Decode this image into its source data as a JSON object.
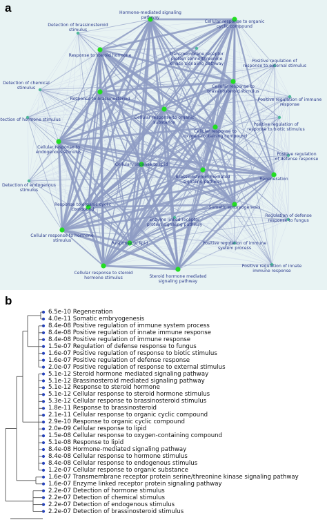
{
  "panel_a": {
    "letter": "a",
    "nodes": [
      {
        "id": "hormone_signal",
        "lines": [
          "Hormone-mediated signaling",
          "pathway"
        ],
        "accent": true
      },
      {
        "id": "detect_brass",
        "lines": [
          "Detection of brassinosteroid",
          "stimulus"
        ],
        "accent": false
      },
      {
        "id": "cell_org_cyclic",
        "lines": [
          "Cellular response to organic",
          "cyclic compound"
        ],
        "accent": true
      },
      {
        "id": "resp_steroid",
        "lines": [
          "Response to steroid hormone"
        ],
        "accent": true
      },
      {
        "id": "transmembrane",
        "lines": [
          "Transmembrane receptor",
          "protein serine/threonine",
          "kinase signaling pathway"
        ],
        "accent": false
      },
      {
        "id": "pos_ext",
        "lines": [
          "Positive regulation of",
          "response to external stimulus"
        ],
        "accent": false
      },
      {
        "id": "detect_chem",
        "lines": [
          "Detection of chemical",
          "stimulus"
        ],
        "accent": false
      },
      {
        "id": "cell_brass",
        "lines": [
          "Cellular response to",
          "brassinosteroid stimulus"
        ],
        "accent": true
      },
      {
        "id": "resp_brass",
        "lines": [
          "Response to brassinosteroid"
        ],
        "accent": true
      },
      {
        "id": "pos_immune",
        "lines": [
          "Positive regulation of immune",
          "response"
        ],
        "accent": false
      },
      {
        "id": "detect_hormone",
        "lines": [
          "Detection of hormone stimulus"
        ],
        "accent": false
      },
      {
        "id": "cell_org_sub",
        "lines": [
          "Cellular response to organic",
          "substance"
        ],
        "accent": true
      },
      {
        "id": "pos_biotic",
        "lines": [
          "Positive regulation of",
          "response to biotic stimulus"
        ],
        "accent": false
      },
      {
        "id": "cell_oxy",
        "lines": [
          "Cellular response to",
          "oxygen-containing compound"
        ],
        "accent": true
      },
      {
        "id": "cell_endo",
        "lines": [
          "Cellular response to",
          "endogenous stimulus"
        ],
        "accent": true
      },
      {
        "id": "pos_defense",
        "lines": [
          "Positive regulation",
          "of defense response"
        ],
        "accent": false
      },
      {
        "id": "cell_lipid",
        "lines": [
          "Cellular response to lipid"
        ],
        "accent": true
      },
      {
        "id": "brass_signal",
        "lines": [
          "Brassinosteroid mediated",
          "signaling pathway"
        ],
        "accent": true
      },
      {
        "id": "regeneration",
        "lines": [
          "Regeneration"
        ],
        "accent": true
      },
      {
        "id": "detect_endo",
        "lines": [
          "Detection of endogenous",
          "stimulus"
        ],
        "accent": false
      },
      {
        "id": "resp_org_cyclic",
        "lines": [
          "Response to organic cyclic",
          "compound"
        ],
        "accent": true
      },
      {
        "id": "somatic",
        "lines": [
          "Somatic embryogenesis"
        ],
        "accent": true
      },
      {
        "id": "enzyme_linked",
        "lines": [
          "Enzyme linked receptor",
          "protein signaling pathway"
        ],
        "accent": false
      },
      {
        "id": "reg_fungus",
        "lines": [
          "Regulation of defense",
          "response to fungus"
        ],
        "accent": false
      },
      {
        "id": "cell_hormone",
        "lines": [
          "Cellular response to hormone",
          "stimulus"
        ],
        "accent": true
      },
      {
        "id": "resp_lipid",
        "lines": [
          "Response to lipid"
        ],
        "accent": true
      },
      {
        "id": "pos_immune_sys",
        "lines": [
          "Positive regulation of immune",
          "system process"
        ],
        "accent": false
      },
      {
        "id": "cell_steroid",
        "lines": [
          "Cellular response to steroid",
          "hormone stimulus"
        ],
        "accent": true
      },
      {
        "id": "steroid_signal",
        "lines": [
          "Steroid hormone mediated",
          "signaling pathway"
        ],
        "accent": true
      },
      {
        "id": "pos_innate",
        "lines": [
          "Positive regulation of innate",
          "immune response"
        ],
        "accent": false
      }
    ],
    "colors": {
      "background": "#e8f3f3",
      "edge_strong": "#8e9cc4",
      "edge_faint": "#c3cde6",
      "node_green": "#22dd22",
      "node_teal": "#4fb89a",
      "label": "#2a3a8c"
    }
  },
  "panel_b": {
    "letter": "b",
    "leaves": [
      {
        "pvalue": "6.5e-10",
        "term": "Regeneration"
      },
      {
        "pvalue": "4.0e-11",
        "term": "Somatic embryogenesis"
      },
      {
        "pvalue": "8.4e-08",
        "term": "Positive regulation of immune system process"
      },
      {
        "pvalue": "8.4e-08",
        "term": "Positive regulation of innate immune response"
      },
      {
        "pvalue": "8.4e-08",
        "term": "Positive regulation of immune response"
      },
      {
        "pvalue": "1.5e-07",
        "term": "Regulation of defense response to fungus"
      },
      {
        "pvalue": "1.6e-07",
        "term": "Positive regulation of response to biotic stimulus"
      },
      {
        "pvalue": "1.6e-07",
        "term": "Positive regulation of defense response"
      },
      {
        "pvalue": "2.0e-07",
        "term": "Positive regulation of response to external stimulus"
      },
      {
        "pvalue": "5.1e-12",
        "term": "Steroid hormone mediated signaling pathway"
      },
      {
        "pvalue": "5.1e-12",
        "term": "Brassinosteroid mediated signaling pathway"
      },
      {
        "pvalue": "5.1e-12",
        "term": "Response to steroid hormone"
      },
      {
        "pvalue": "5.1e-12",
        "term": "Cellular response to steroid hormone stimulus"
      },
      {
        "pvalue": "5.3e-12",
        "term": "Cellular response to brassinosteroid stimulus"
      },
      {
        "pvalue": "1.8e-11",
        "term": "Response to brassinosteroid"
      },
      {
        "pvalue": "2.1e-11",
        "term": "Cellular response to organic cyclic compound"
      },
      {
        "pvalue": "2.9e-10",
        "term": "Response to organic cyclic compound"
      },
      {
        "pvalue": "2.0e-09",
        "term": "Cellular response to lipid"
      },
      {
        "pvalue": "1.5e-08",
        "term": "Cellular response to oxygen-containing compound"
      },
      {
        "pvalue": "5.1e-08",
        "term": "Response to lipid"
      },
      {
        "pvalue": "8.4e-08",
        "term": "Hormone-mediated signaling pathway"
      },
      {
        "pvalue": "8.4e-08",
        "term": "Cellular response to hormone stimulus"
      },
      {
        "pvalue": "8.4e-08",
        "term": "Cellular response to endogenous stimulus"
      },
      {
        "pvalue": "1.2e-07",
        "term": "Cellular response to organic substance"
      },
      {
        "pvalue": "1.6e-07",
        "term": "Transmembrane receptor protein serine/threonine kinase signaling pathway"
      },
      {
        "pvalue": "1.6e-07",
        "term": "Enzyme linked receptor protein signaling pathway"
      },
      {
        "pvalue": "2.2e-07",
        "term": "Detection of hormone stimulus"
      },
      {
        "pvalue": "2.2e-07",
        "term": "Detection of chemical stimulus"
      },
      {
        "pvalue": "2.2e-07",
        "term": "Detection of endogenous stimulus"
      },
      {
        "pvalue": "2.2e-07",
        "term": "Detection of brassinosteroid stimulus"
      }
    ],
    "colors": {
      "tree_line": "#555555",
      "dot": "#1f3fc8"
    }
  }
}
